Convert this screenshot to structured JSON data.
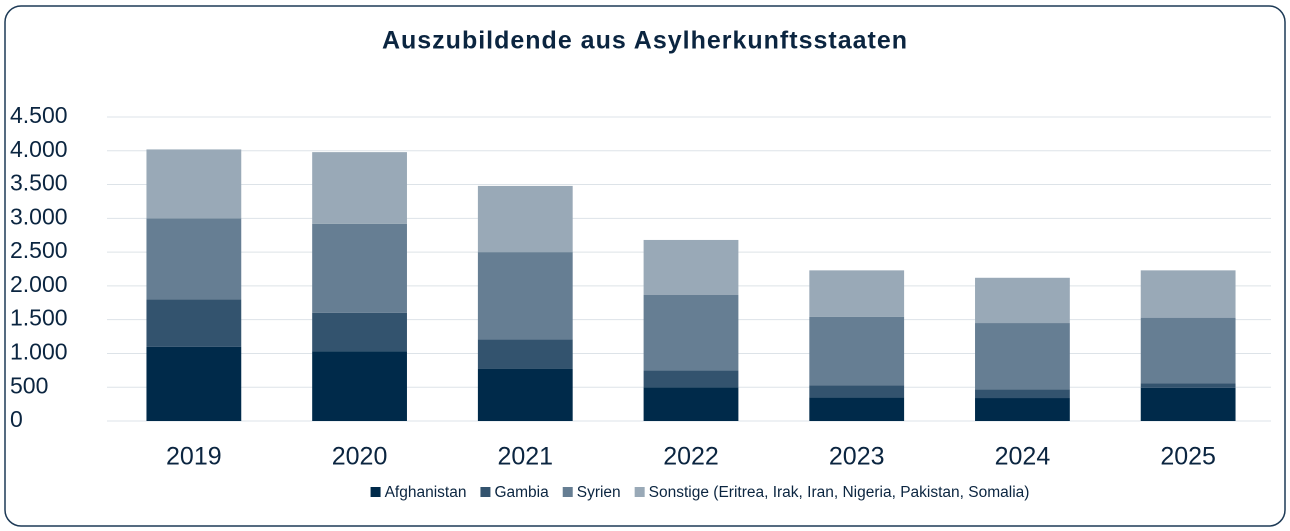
{
  "chart_data": {
    "type": "stacked_bar",
    "title": "Auszubildende aus Asylherkunftsstaaten",
    "categories": [
      "2019",
      "2020",
      "2021",
      "2022",
      "2023",
      "2024",
      "2025"
    ],
    "series": [
      {
        "name": "Afghanistan",
        "color": "#002a4a",
        "values": [
          1100,
          1030,
          770,
          500,
          350,
          340,
          490
        ]
      },
      {
        "name": "Gambia",
        "color": "#33536e",
        "values": [
          700,
          570,
          440,
          250,
          180,
          130,
          70
        ]
      },
      {
        "name": "Syrien",
        "color": "#667e93",
        "values": [
          1200,
          1320,
          1290,
          1120,
          1010,
          980,
          970
        ]
      },
      {
        "name": "Sonstige (Eritrea, Irak, Iran, Nigeria, Pakistan, Somalia)",
        "color": "#99a9b7",
        "values": [
          1020,
          1060,
          980,
          810,
          690,
          670,
          700
        ]
      }
    ],
    "ylim": [
      0,
      4500
    ],
    "yticks": [
      0,
      500,
      {
        "value": 1000,
        "label": "1.000"
      },
      {
        "value": 1500,
        "label": "1.500"
      },
      {
        "value": 2000,
        "label": "2.000"
      },
      {
        "value": 2500,
        "label": "2.500"
      },
      {
        "value": 3000,
        "label": "3.000"
      },
      {
        "value": 3500,
        "label": "3.500"
      },
      {
        "value": 4000,
        "label": "4.000"
      },
      {
        "value": 4500,
        "label": "4.500"
      }
    ],
    "grid": true,
    "legend": "bottom"
  }
}
